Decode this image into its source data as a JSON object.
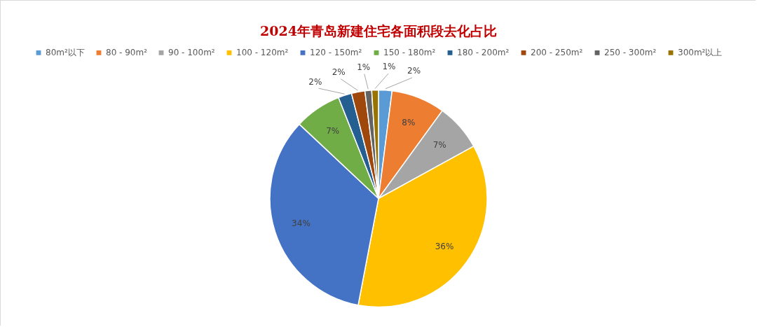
{
  "chart_data": {
    "type": "pie",
    "title": "2024年青岛新建住宅各面积段去化占比",
    "categories": [
      "80m²以下",
      "80 - 90m²",
      "90 - 100m²",
      "100 - 120m²",
      "120 - 150m²",
      "150 - 180m²",
      "180 - 200m²",
      "200 - 250m²",
      "250 - 300m²",
      "300m²以上"
    ],
    "values": [
      2,
      8,
      7,
      36,
      34,
      7,
      2,
      2,
      1,
      1
    ],
    "value_labels": [
      "2%",
      "8%",
      "7%",
      "36%",
      "34%",
      "7%",
      "2%",
      "2%",
      "1%",
      "1%"
    ],
    "colors": [
      "#5b9bd5",
      "#ed7d31",
      "#a5a5a5",
      "#ffc000",
      "#4472c4",
      "#70ad47",
      "#255e91",
      "#9e480e",
      "#636363",
      "#997300"
    ],
    "legend": "top"
  }
}
